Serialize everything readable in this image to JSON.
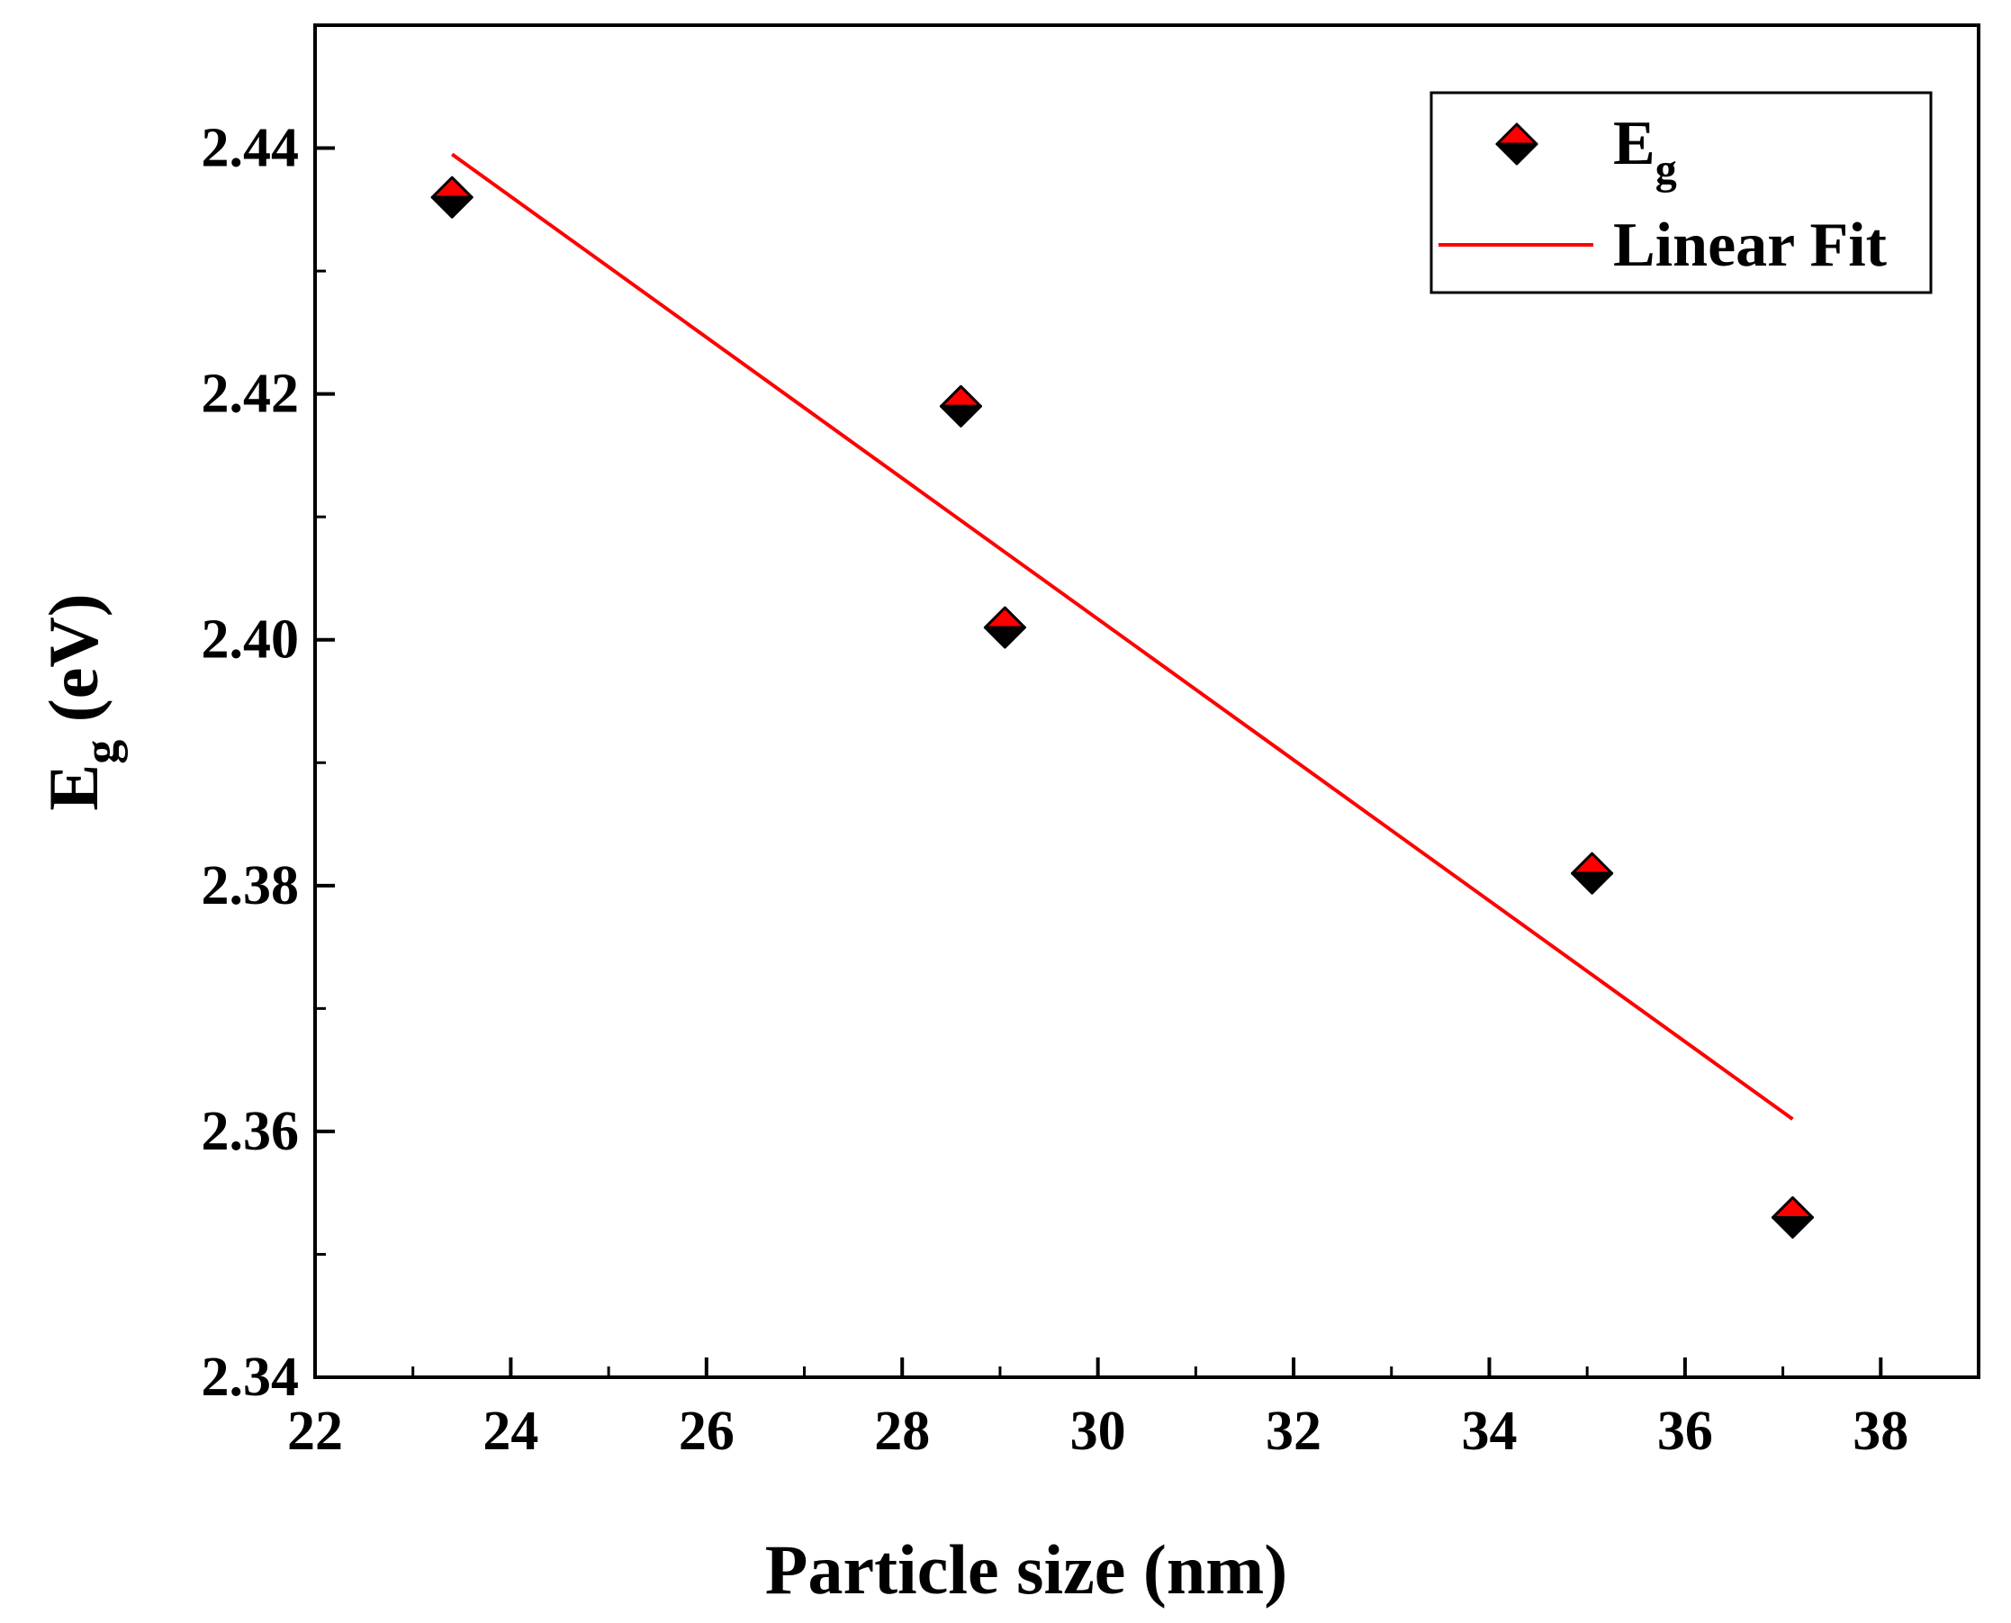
{
  "chart_data": {
    "type": "scatter",
    "title": "",
    "xlabel": "Particle size (nm)",
    "ylabel_main": "E",
    "ylabel_sub": "g",
    "ylabel_unit": " (eV)",
    "xlim": [
      22,
      39
    ],
    "ylim": [
      2.34,
      2.45
    ],
    "xticks": [
      22,
      24,
      26,
      28,
      30,
      32,
      34,
      36,
      38
    ],
    "xtick_labels": [
      "22",
      "24",
      "26",
      "28",
      "30",
      "32",
      "34",
      "36",
      "38"
    ],
    "yticks": [
      2.34,
      2.36,
      2.38,
      2.4,
      2.42,
      2.44
    ],
    "ytick_labels": [
      "2.34",
      "2.36",
      "2.38",
      "2.40",
      "2.42",
      "2.44"
    ],
    "grid": false,
    "legend_position": "top-right",
    "series": [
      {
        "name": "Eg",
        "legend_main": "E",
        "legend_sub": "g",
        "kind": "points",
        "marker": "diamond",
        "color_top": "#ff0000",
        "color_bottom": "#000000",
        "x": [
          23.4,
          28.6,
          29.05,
          35.05,
          37.1
        ],
        "y": [
          2.436,
          2.419,
          2.401,
          2.381,
          2.353
        ]
      },
      {
        "name": "Linear Fit",
        "legend_label": "Linear Fit",
        "kind": "line",
        "color": "#ff0000",
        "x": [
          23.4,
          37.1
        ],
        "y": [
          2.4395,
          2.361
        ]
      }
    ]
  }
}
